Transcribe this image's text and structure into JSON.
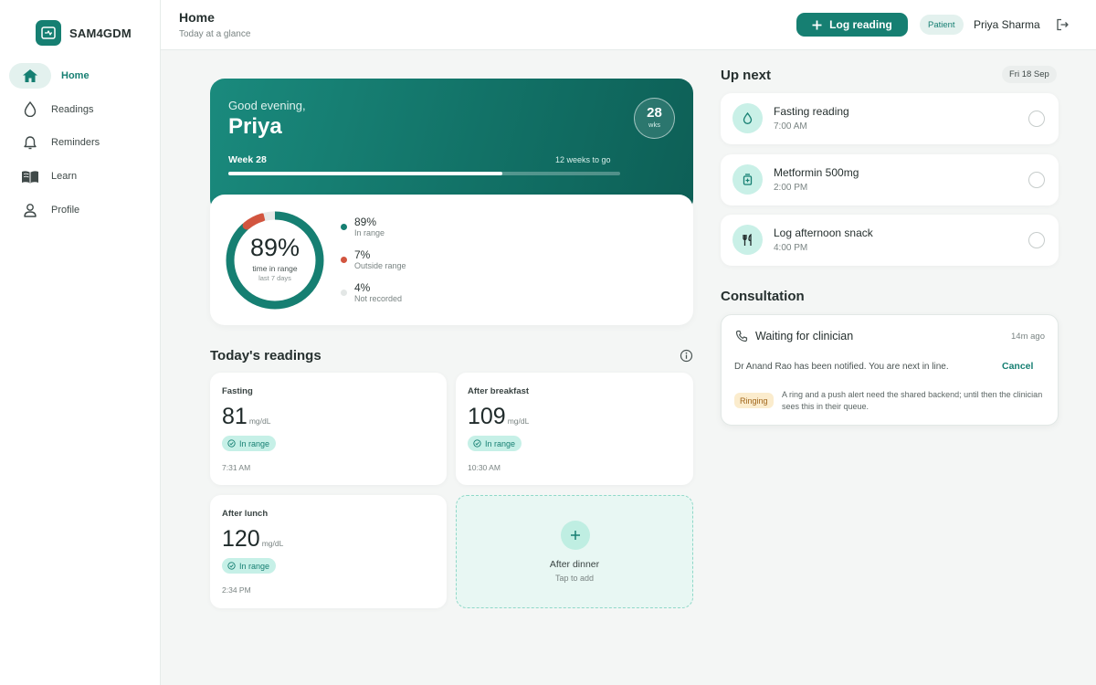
{
  "app": {
    "name": "SAM4GDM"
  },
  "sidebar": {
    "items": [
      {
        "label": "Home",
        "icon": "home-icon",
        "active": true
      },
      {
        "label": "Readings",
        "icon": "droplet-icon"
      },
      {
        "label": "Reminders",
        "icon": "bell-icon"
      },
      {
        "label": "Learn",
        "icon": "book-icon"
      },
      {
        "label": "Profile",
        "icon": "person-icon"
      }
    ]
  },
  "header": {
    "title": "Home",
    "subtitle": "Today at a glance",
    "log_button": "Log reading",
    "role_badge": "Patient",
    "user_name": "Priya Sharma"
  },
  "hero": {
    "greeting": "Good evening,",
    "name": "Priya",
    "week_number": "28",
    "week_unit": "wks",
    "week_label": "Week 28",
    "weeks_remaining": "12 weeks to go",
    "progress": 0.7
  },
  "time_in_range": {
    "value": "89%",
    "caption": "time in range",
    "period": "last 7 days",
    "segments": [
      {
        "value": "89%",
        "label": "In range",
        "fraction": 0.89,
        "color": "#167f72"
      },
      {
        "value": "7%",
        "label": "Outside range",
        "fraction": 0.07,
        "color": "#d2553f"
      },
      {
        "value": "4%",
        "label": "Not recorded",
        "fraction": 0.04,
        "color": "#e6e9e8"
      }
    ]
  },
  "readings": {
    "title": "Today's readings",
    "items": [
      {
        "label": "Fasting",
        "value": "81",
        "unit": "mg/dL",
        "status": "In range",
        "time": "7:31 AM"
      },
      {
        "label": "After breakfast",
        "value": "109",
        "unit": "mg/dL",
        "status": "In range",
        "time": "10:30 AM"
      },
      {
        "label": "After lunch",
        "value": "120",
        "unit": "mg/dL",
        "status": "In range",
        "time": "2:34 PM"
      }
    ],
    "add": {
      "label": "After dinner",
      "hint": "Tap to add"
    }
  },
  "up_next": {
    "title": "Up next",
    "date": "Fri 18 Sep",
    "items": [
      {
        "title": "Fasting reading",
        "time": "7:00 AM",
        "icon": "droplet-icon"
      },
      {
        "title": "Metformin 500mg",
        "time": "2:00 PM",
        "icon": "pill-icon"
      },
      {
        "title": "Log afternoon snack",
        "time": "4:00 PM",
        "icon": "utensils-icon"
      }
    ]
  },
  "consultation": {
    "title": "Consultation",
    "status": "Waiting for clinician",
    "ago": "14m ago",
    "message": "Dr Anand Rao has been notified. You are next in line.",
    "cancel": "Cancel",
    "badge": "Ringing",
    "note": "A ring and a push alert need the shared backend; until then the clinician sees this in their queue."
  }
}
